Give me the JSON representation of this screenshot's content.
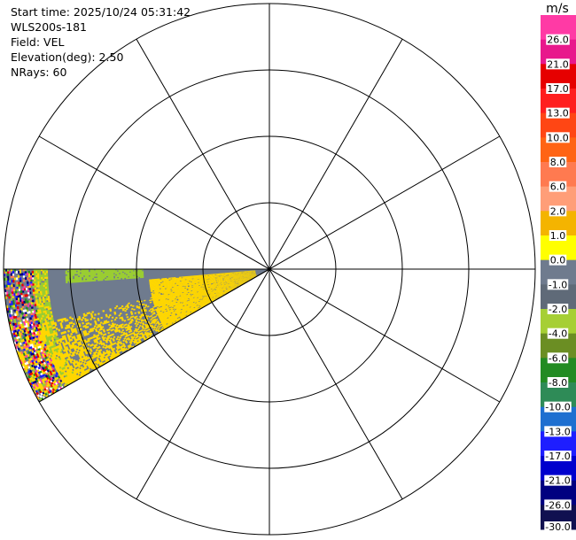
{
  "info": {
    "start_time": "Start time: 2025/10/24 05:31:42",
    "instrument": "WLS200s-181",
    "field": "Field: VEL",
    "elevation": "Elevation(deg): 2.50",
    "nrays": "NRays: 60"
  },
  "chart_data": {
    "type": "ppi",
    "field": "VEL",
    "elevation_deg": 2.5,
    "nrays": 60,
    "sector_az_deg": [
      240,
      270
    ],
    "range_rings": 4,
    "spoke_step_deg": 30,
    "colorbar": {
      "unit": "m/s",
      "tick_labels": [
        "26.0",
        "21.0",
        "17.0",
        "13.0",
        "10.0",
        "8.0",
        "6.0",
        "2.0",
        "1.0",
        "0.0",
        "-1.0",
        "-2.0",
        "-4.0",
        "-6.0",
        "-8.0",
        "-10.0",
        "-13.0",
        "-17.0",
        "-21.0",
        "-26.0",
        "-30.0"
      ],
      "colors": [
        "#ff3aa5",
        "#e8188c",
        "#e60000",
        "#ff1e1e",
        "#ff4614",
        "#ff6414",
        "#ff7a50",
        "#ff9e78",
        "#f4b400",
        "#ffff00",
        "#6f7b8e",
        "#5f6a78",
        "#a6cf34",
        "#6b8e23",
        "#228b22",
        "#2e8b57",
        "#1e6fd0",
        "#1e1eff",
        "#0000cd",
        "#000080",
        "#101050"
      ]
    }
  }
}
